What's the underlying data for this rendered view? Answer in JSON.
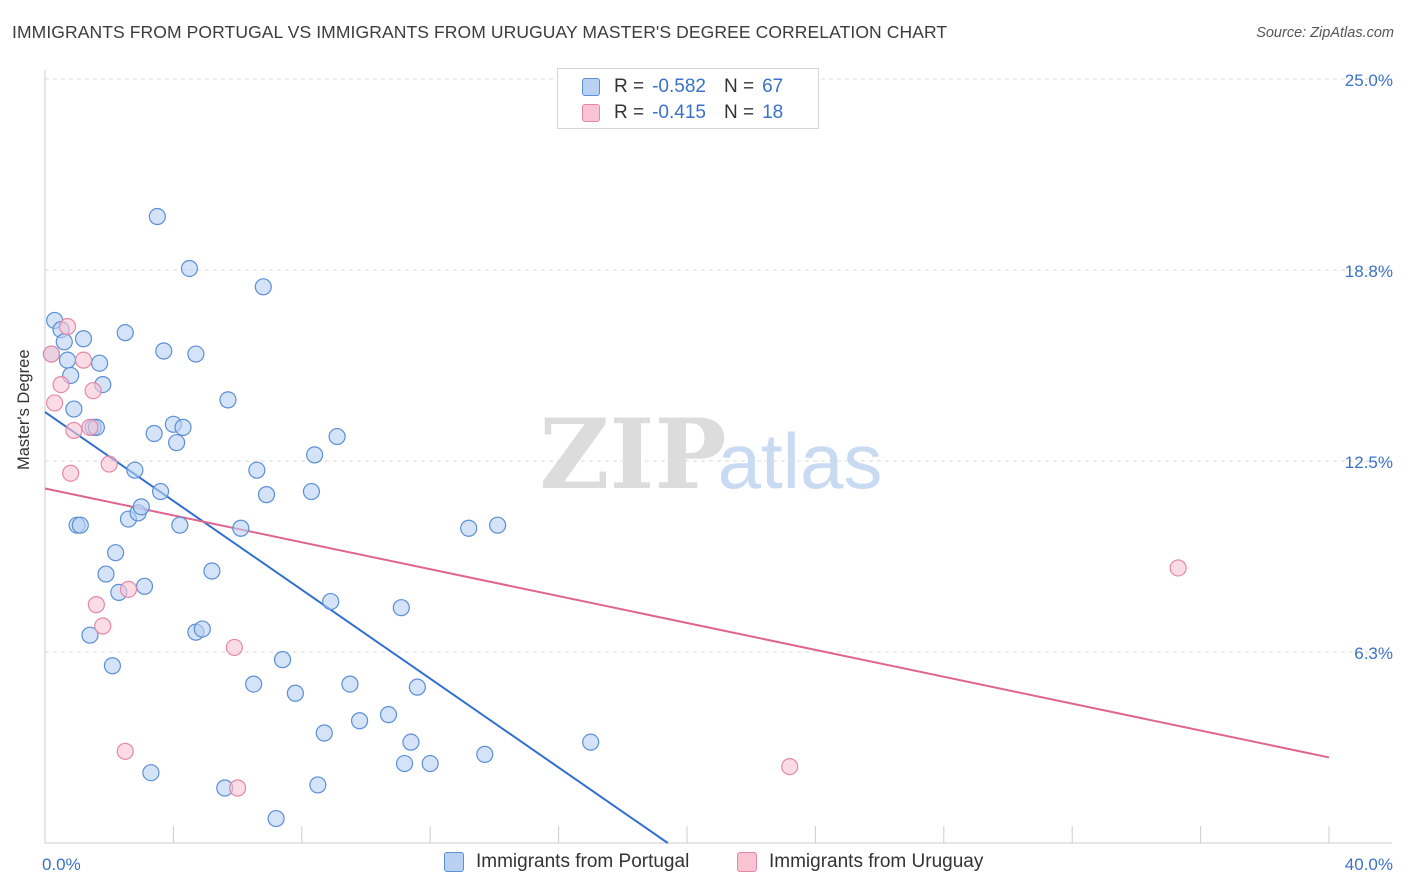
{
  "title": "IMMIGRANTS FROM PORTUGAL VS IMMIGRANTS FROM URUGUAY MASTER'S DEGREE CORRELATION CHART",
  "source": "Source: ZipAtlas.com",
  "watermark": {
    "zip": "ZIP",
    "atlas": "atlas"
  },
  "legend": {
    "r_label": "R =",
    "n_label": "N =",
    "items": [
      {
        "name": "Immigrants from Portugal",
        "r": "-0.582",
        "n": "67",
        "fill": "#b8d0f2",
        "stroke": "#5b8fd6"
      },
      {
        "name": "Immigrants from Uruguay",
        "r": "-0.415",
        "n": "18",
        "fill": "#f8c4d4",
        "stroke": "#e687a7"
      }
    ]
  },
  "colors": {
    "blue_line": "#2f6fd0",
    "pink_line": "#e0648e",
    "axis_text": "#3a72c9",
    "grid": "#d9d9d9"
  },
  "chart_data": {
    "type": "scatter",
    "title": "IMMIGRANTS FROM PORTUGAL VS IMMIGRANTS FROM URUGUAY MASTER'S DEGREE CORRELATION CHART",
    "xlabel": "",
    "ylabel": "Master's Degree",
    "xlim": [
      0,
      40
    ],
    "ylim": [
      0,
      25
    ],
    "x_tick_labels": [
      {
        "value": 0,
        "label": "0.0%"
      },
      {
        "value": 40,
        "label": "40.0%"
      }
    ],
    "y_tick_labels": [
      {
        "value": 6.25,
        "label": "6.3%"
      },
      {
        "value": 12.5,
        "label": "12.5%"
      },
      {
        "value": 18.75,
        "label": "18.8%"
      },
      {
        "value": 25.0,
        "label": "25.0%"
      }
    ],
    "series": [
      {
        "name": "Immigrants from Portugal",
        "points": [
          [
            0.2,
            16.0
          ],
          [
            0.3,
            17.1
          ],
          [
            0.5,
            16.8
          ],
          [
            0.6,
            16.4
          ],
          [
            0.7,
            15.8
          ],
          [
            0.8,
            15.3
          ],
          [
            0.9,
            14.2
          ],
          [
            1.0,
            10.4
          ],
          [
            1.1,
            10.4
          ],
          [
            1.2,
            16.5
          ],
          [
            1.4,
            6.8
          ],
          [
            1.5,
            13.6
          ],
          [
            1.6,
            13.6
          ],
          [
            1.7,
            15.7
          ],
          [
            1.8,
            15.0
          ],
          [
            1.9,
            8.8
          ],
          [
            2.1,
            5.8
          ],
          [
            2.2,
            9.5
          ],
          [
            2.3,
            8.2
          ],
          [
            2.5,
            16.7
          ],
          [
            2.6,
            10.6
          ],
          [
            2.8,
            12.2
          ],
          [
            2.9,
            10.8
          ],
          [
            3.0,
            11.0
          ],
          [
            3.1,
            8.4
          ],
          [
            3.3,
            2.3
          ],
          [
            3.4,
            13.4
          ],
          [
            3.5,
            20.5
          ],
          [
            3.6,
            11.5
          ],
          [
            3.7,
            16.1
          ],
          [
            4.0,
            13.7
          ],
          [
            4.1,
            13.1
          ],
          [
            4.2,
            10.4
          ],
          [
            4.3,
            13.6
          ],
          [
            4.5,
            18.8
          ],
          [
            4.7,
            16.0
          ],
          [
            4.7,
            6.9
          ],
          [
            4.9,
            7.0
          ],
          [
            5.2,
            8.9
          ],
          [
            5.7,
            14.5
          ],
          [
            5.6,
            1.8
          ],
          [
            6.1,
            10.3
          ],
          [
            6.5,
            5.2
          ],
          [
            6.6,
            12.2
          ],
          [
            6.8,
            18.2
          ],
          [
            6.9,
            11.4
          ],
          [
            7.2,
            0.8
          ],
          [
            7.4,
            6.0
          ],
          [
            7.8,
            4.9
          ],
          [
            8.3,
            11.5
          ],
          [
            8.4,
            12.7
          ],
          [
            8.5,
            1.9
          ],
          [
            8.7,
            3.6
          ],
          [
            8.9,
            7.9
          ],
          [
            9.1,
            13.3
          ],
          [
            9.5,
            5.2
          ],
          [
            9.8,
            4.0
          ],
          [
            10.7,
            4.2
          ],
          [
            11.1,
            7.7
          ],
          [
            11.2,
            2.6
          ],
          [
            11.4,
            3.3
          ],
          [
            11.6,
            5.1
          ],
          [
            12.0,
            2.6
          ],
          [
            13.2,
            10.3
          ],
          [
            13.7,
            2.9
          ],
          [
            14.1,
            10.4
          ],
          [
            17.0,
            3.3
          ]
        ]
      },
      {
        "name": "Immigrants from Uruguay",
        "points": [
          [
            0.2,
            16.0
          ],
          [
            0.3,
            14.4
          ],
          [
            0.5,
            15.0
          ],
          [
            0.7,
            16.9
          ],
          [
            0.8,
            12.1
          ],
          [
            0.9,
            13.5
          ],
          [
            1.2,
            15.8
          ],
          [
            1.4,
            13.6
          ],
          [
            1.5,
            14.8
          ],
          [
            1.6,
            7.8
          ],
          [
            1.8,
            7.1
          ],
          [
            2.0,
            12.4
          ],
          [
            2.5,
            3.0
          ],
          [
            2.6,
            8.3
          ],
          [
            5.9,
            6.4
          ],
          [
            6.0,
            1.8
          ],
          [
            23.2,
            2.5
          ],
          [
            35.3,
            9.0
          ]
        ]
      }
    ],
    "trendlines": [
      {
        "series": "Immigrants from Portugal",
        "from": [
          0,
          14.1
        ],
        "to": [
          19.4,
          0
        ]
      },
      {
        "series": "Immigrants from Uruguay",
        "from": [
          0,
          11.6
        ],
        "to": [
          40,
          2.8
        ]
      }
    ]
  }
}
